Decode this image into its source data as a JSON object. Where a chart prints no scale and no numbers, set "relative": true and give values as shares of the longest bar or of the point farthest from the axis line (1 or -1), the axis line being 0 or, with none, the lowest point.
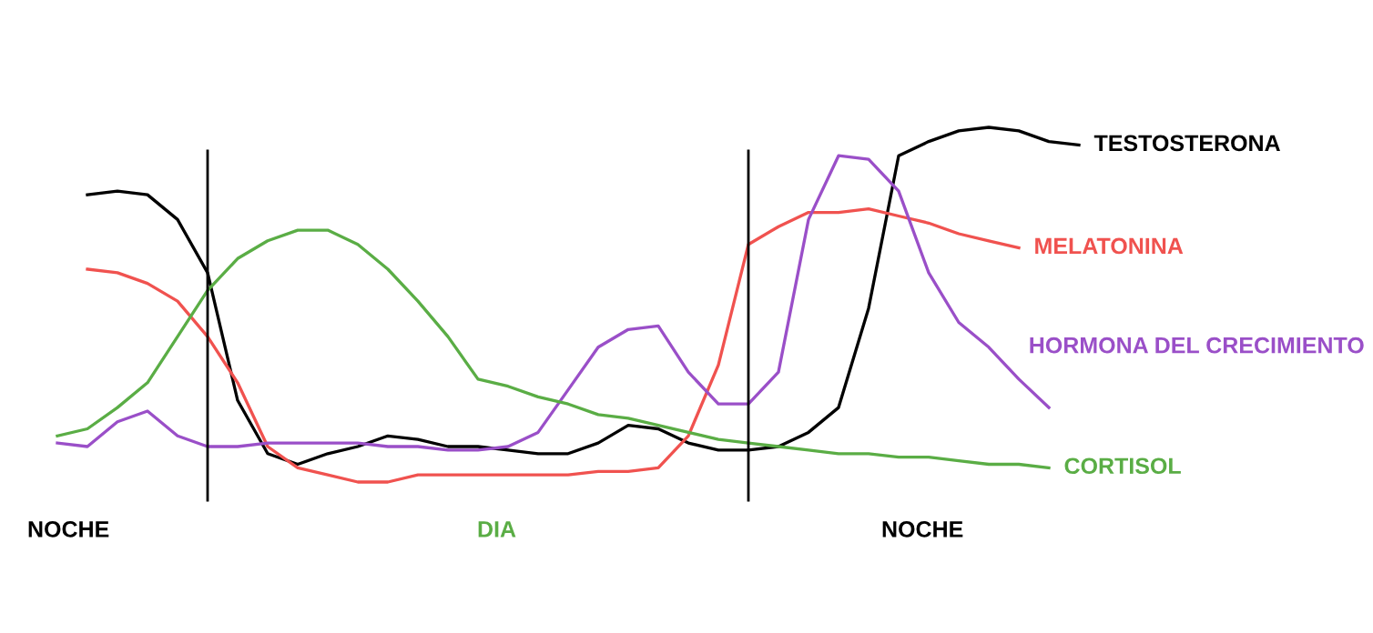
{
  "chart_data": {
    "type": "line",
    "relative": true,
    "legend": false,
    "marker": "none",
    "line_style": "solid",
    "categories": [
      null,
      null,
      null,
      null,
      null,
      null,
      null,
      null,
      null,
      null,
      null,
      null,
      null,
      null,
      null,
      null,
      null,
      null,
      null,
      null,
      null,
      null,
      null,
      null,
      null,
      null,
      null,
      null,
      null,
      null,
      null,
      null,
      null,
      null,
      null,
      null,
      null,
      null,
      null,
      null,
      null,
      null,
      null,
      null,
      null
    ],
    "series": [
      {
        "name": "TESTOSTERONA",
        "color": "#000000",
        "values": [
          null,
          null,
          0.81,
          0.82,
          0.81,
          0.74,
          0.59,
          0.23,
          0.08,
          0.05,
          0.08,
          0.1,
          0.13,
          0.12,
          0.1,
          0.1,
          0.09,
          0.08,
          0.08,
          0.11,
          0.16,
          0.15,
          0.11,
          0.09,
          0.09,
          0.1,
          0.14,
          0.21,
          0.49,
          0.92,
          0.96,
          0.99,
          1,
          0.99,
          0.96,
          0.95,
          null,
          null,
          null,
          null,
          null,
          null,
          null,
          null,
          null
        ]
      },
      {
        "name": "MELATONINA",
        "color": "#f0524f",
        "values": [
          null,
          null,
          0.6,
          0.59,
          0.56,
          0.51,
          0.41,
          0.28,
          0.1,
          0.04,
          0.02,
          0,
          0,
          0.02,
          0.02,
          0.02,
          0.02,
          0.02,
          0.02,
          0.03,
          0.03,
          0.04,
          0.13,
          0.33,
          0.67,
          0.72,
          0.76,
          0.76,
          0.77,
          0.75,
          0.73,
          0.7,
          0.68,
          0.66,
          null,
          null,
          null,
          null,
          null,
          null,
          null,
          null,
          null,
          null,
          null
        ]
      },
      {
        "name": "HORMONA DEL CRECIMIENTO",
        "color": "#9a4fc8",
        "values": [
          null,
          0.11,
          0.1,
          0.17,
          0.2,
          0.13,
          0.1,
          0.1,
          0.11,
          0.11,
          0.11,
          0.11,
          0.1,
          0.1,
          0.09,
          0.09,
          0.1,
          0.14,
          0.26,
          0.38,
          0.43,
          0.44,
          0.31,
          0.22,
          0.22,
          0.31,
          0.74,
          0.92,
          0.91,
          0.82,
          0.59,
          0.45,
          0.38,
          0.29,
          0.21,
          null,
          null,
          null,
          null,
          null,
          null,
          null,
          null,
          null,
          null
        ]
      },
      {
        "name": "CORTISOL",
        "color": "#5aad45",
        "values": [
          null,
          0.13,
          0.15,
          0.21,
          0.28,
          0.41,
          0.54,
          0.63,
          0.68,
          0.71,
          0.71,
          0.67,
          0.6,
          0.51,
          0.41,
          0.29,
          0.27,
          0.24,
          0.22,
          0.19,
          0.18,
          0.16,
          0.14,
          0.12,
          0.11,
          0.1,
          0.09,
          0.08,
          0.08,
          0.07,
          0.07,
          0.06,
          0.05,
          0.05,
          0.04,
          null,
          null,
          null,
          null,
          null,
          null,
          null,
          null,
          null,
          null
        ]
      }
    ],
    "annotations": [
      "NOCHE",
      "DIA",
      "NOCHE"
    ]
  }
}
